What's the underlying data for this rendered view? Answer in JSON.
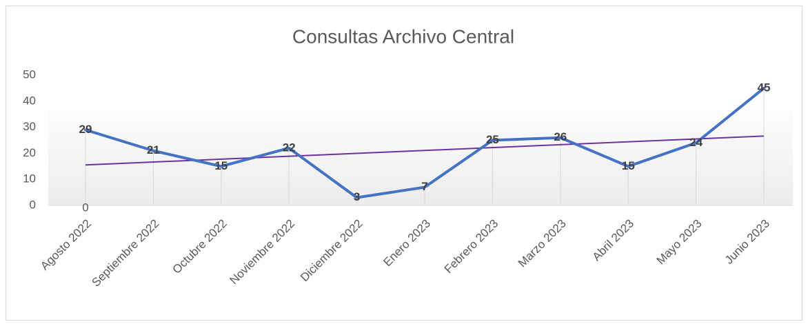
{
  "chart_data": {
    "type": "line",
    "title": "Consultas  Archivo Central",
    "categories": [
      "Agosto 2022",
      "Septiembre 2022",
      "Octubre 2022",
      "Noviembre 2022",
      "Diciembre 2022",
      "Enero 2023",
      "Febrero 2023",
      "Marzo 2023",
      "Abril 2023",
      "Mayo 2023",
      "Junio 2023"
    ],
    "series": [
      {
        "name": "Consultas",
        "color": "#4472c4",
        "values": [
          29,
          21,
          15,
          22,
          3,
          7,
          25,
          26,
          15,
          24,
          45
        ]
      }
    ],
    "trendline": {
      "type": "linear",
      "color": "#7030a0"
    },
    "annotations": [
      {
        "text": "0",
        "category": "Agosto 2022",
        "value": 0
      }
    ],
    "ylim": [
      0,
      50
    ],
    "yticks": [
      0,
      10,
      20,
      30,
      40,
      50
    ],
    "legend": false
  }
}
